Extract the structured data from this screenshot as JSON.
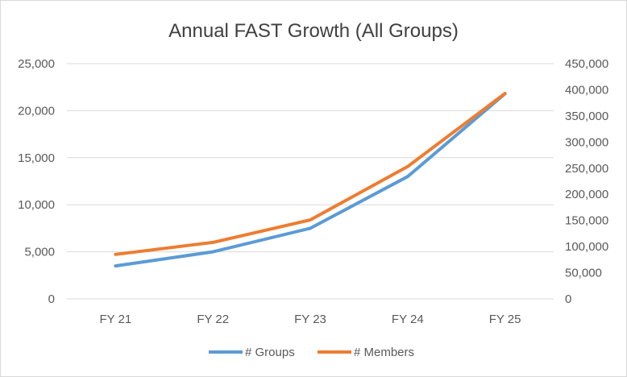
{
  "chart_data": {
    "type": "line",
    "title": "Annual FAST Growth (All Groups)",
    "categories": [
      "FY 21",
      "FY 22",
      "FY 23",
      "FY 24",
      "FY 25"
    ],
    "y_left": {
      "ticks": [
        "0",
        "5,000",
        "10,000",
        "15,000",
        "20,000",
        "25,000"
      ],
      "ylim": [
        0,
        25000
      ]
    },
    "y_right": {
      "ticks": [
        "0",
        "50,000",
        "100,000",
        "150,000",
        "200,000",
        "250,000",
        "300,000",
        "350,000",
        "400,000",
        "450,000"
      ],
      "ylim": [
        0,
        450000
      ]
    },
    "series": [
      {
        "name": "# Groups",
        "axis": "left",
        "color": "#5b9bd5",
        "values": [
          3500,
          5000,
          7500,
          13000,
          21800
        ]
      },
      {
        "name": "# Members",
        "axis": "right",
        "color": "#ed7d31",
        "values": [
          85000,
          108000,
          151000,
          253000,
          393000
        ]
      }
    ],
    "grid": true,
    "legend": "bottom"
  }
}
